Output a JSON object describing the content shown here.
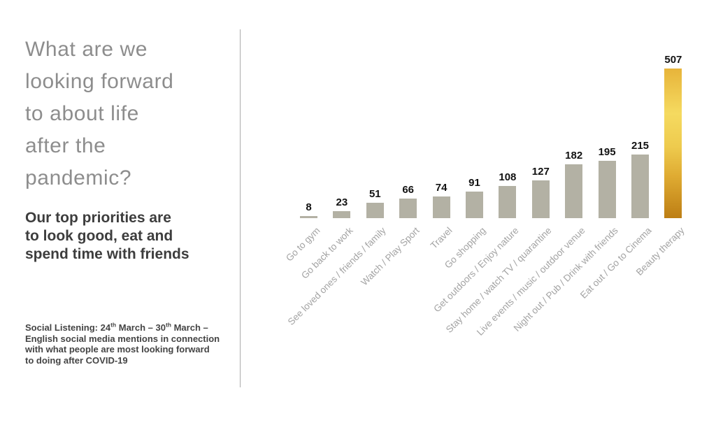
{
  "slide": {
    "title_lines": [
      "What are we",
      "looking forward",
      "to about life",
      "after the",
      "pandemic?"
    ],
    "subtitle_lines": [
      "Our top priorities are",
      "to look good, eat and",
      "spend time with friends"
    ],
    "footnote_line1_parts": [
      {
        "t": "Social Listening: 24"
      },
      {
        "t": "th",
        "sup": true
      },
      {
        "t": " March – 30"
      },
      {
        "t": "th",
        "sup": true
      },
      {
        "t": " March –"
      }
    ],
    "footnote_rest_lines": [
      "English social media mentions in connection",
      "with what people are most looking forward",
      "to doing after COVID-19"
    ]
  },
  "chart_data": {
    "type": "bar",
    "title": "",
    "xlabel": "",
    "ylabel": "",
    "categories": [
      "Go to gym",
      "Go back to work",
      "See loved ones / friends / family",
      "Watch / Play Sport",
      "Travel",
      "Go shopping",
      "Get outdoors / Enjoy nature",
      "Stay home / watch TV / quarantine",
      "Live events / music / outdoor venue",
      "Night out / Pub / Drink with friends",
      "Eat out / Go to Cinema",
      "Beauty therapy"
    ],
    "values": [
      8,
      23,
      51,
      66,
      74,
      91,
      108,
      127,
      182,
      195,
      215,
      507
    ],
    "ylim": [
      0,
      540
    ],
    "grid": false,
    "axes_hidden": true,
    "data_labels_shown": true,
    "legend": "none",
    "sort_order": "ascending",
    "bar_color": "#b3b1a4",
    "highlight_index": 11,
    "highlight_gradient": [
      {
        "c": "#e7b43a",
        "p": "0%"
      },
      {
        "c": "#f5da60",
        "p": "30%"
      },
      {
        "c": "#eecb4e",
        "p": "52%"
      },
      {
        "c": "#dfab32",
        "p": "72%"
      },
      {
        "c": "#bd7e14",
        "p": "100%"
      }
    ],
    "value_label_color": "#121212",
    "category_label_color": "#a3a3a3"
  }
}
